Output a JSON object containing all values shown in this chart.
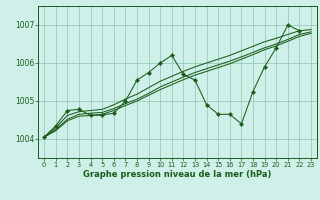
{
  "title": "Graphe pression niveau de la mer (hPa)",
  "bg_color": "#cff0e8",
  "grid_color": "#99ccbb",
  "line_color": "#1a5c1a",
  "marker_color": "#1a5c1a",
  "xlim": [
    -0.5,
    23.5
  ],
  "ylim": [
    1003.5,
    1007.5
  ],
  "xticks": [
    0,
    1,
    2,
    3,
    4,
    5,
    6,
    7,
    8,
    9,
    10,
    11,
    12,
    13,
    14,
    15,
    16,
    17,
    18,
    19,
    20,
    21,
    22,
    23
  ],
  "yticks": [
    1004,
    1005,
    1006,
    1007
  ],
  "series": {
    "main": [
      1004.05,
      1004.35,
      1004.75,
      1004.78,
      1004.62,
      1004.63,
      1004.68,
      1005.0,
      1005.55,
      1005.75,
      1006.0,
      1006.2,
      1005.7,
      1005.55,
      1004.9,
      1004.65,
      1004.65,
      1004.4,
      1005.25,
      1005.9,
      1006.4,
      1007.0,
      1006.85,
      null
    ],
    "line1": [
      1004.05,
      1004.3,
      1004.62,
      1004.72,
      1004.75,
      1004.78,
      1004.9,
      1005.05,
      1005.18,
      1005.35,
      1005.52,
      1005.65,
      1005.78,
      1005.9,
      1006.0,
      1006.1,
      1006.2,
      1006.32,
      1006.44,
      1006.56,
      1006.65,
      1006.75,
      1006.85,
      1006.88
    ],
    "line2": [
      1004.05,
      1004.25,
      1004.52,
      1004.65,
      1004.68,
      1004.7,
      1004.8,
      1004.93,
      1005.05,
      1005.2,
      1005.37,
      1005.5,
      1005.63,
      1005.75,
      1005.85,
      1005.95,
      1006.05,
      1006.16,
      1006.28,
      1006.4,
      1006.5,
      1006.62,
      1006.75,
      1006.82
    ],
    "line3": [
      1004.05,
      1004.22,
      1004.48,
      1004.6,
      1004.62,
      1004.65,
      1004.75,
      1004.88,
      1005.0,
      1005.15,
      1005.3,
      1005.43,
      1005.56,
      1005.68,
      1005.78,
      1005.88,
      1005.98,
      1006.1,
      1006.22,
      1006.35,
      1006.45,
      1006.57,
      1006.7,
      1006.78
    ]
  }
}
